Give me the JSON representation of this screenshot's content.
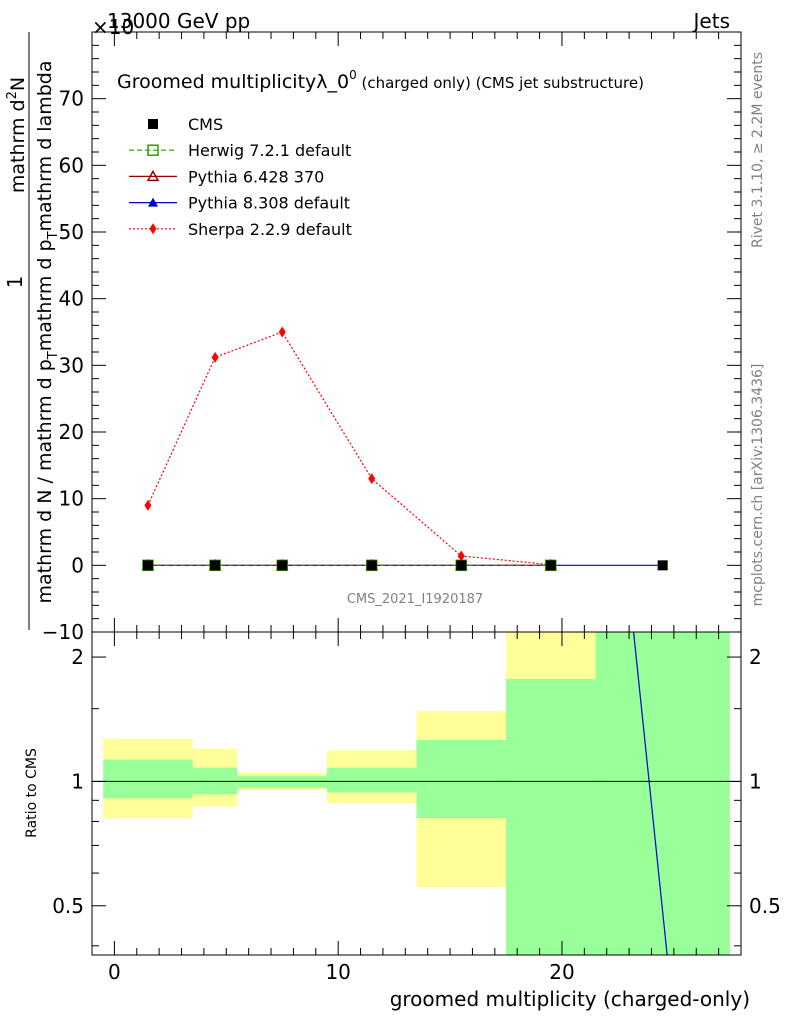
{
  "header": {
    "left": "13000 GeV pp",
    "right": "Jets",
    "exponent": "×10"
  },
  "side": {
    "rivet": "Rivet 3.1.10, ≥ 2.2M events",
    "source": "mcplots.cern.ch [arXiv:1306.3436]"
  },
  "chart_data": [
    {
      "type": "line",
      "title": {
        "main": "Groomed multiplicityλ_0",
        "sup": "0",
        "suffix": " (charged only) (CMS jet substructure)"
      },
      "watermark": "CMS_2021_I1920187",
      "ylabel": {
        "numerator_one": "1",
        "numerator": "mathrm d",
        "numerator_sup": "2",
        "numerator_end": "N",
        "denominator": "mathrm d N / mathrm d p",
        "denominator_sub": "T",
        "denominator_tail": "mathrm d p",
        "denominator_tail_sub": "T",
        "denominator_end": "mathrm d lambda"
      },
      "xlim": [
        -1,
        28
      ],
      "ylim": [
        -10,
        80
      ],
      "yticks": [
        -10,
        0,
        10,
        20,
        30,
        40,
        50,
        60,
        70
      ],
      "legend_position": "top-left",
      "series": [
        {
          "name": "CMS",
          "color": "#000000",
          "marker": "square-filled",
          "line": "none",
          "x": [
            1.5,
            4.5,
            7.5,
            11.5,
            15.5,
            19.5,
            24.5
          ],
          "y": [
            0,
            0,
            0,
            0,
            0,
            0,
            0
          ]
        },
        {
          "name": "Herwig 7.2.1 default",
          "color": "#339900",
          "marker": "square-open",
          "line": "dashed",
          "x": [
            1.5,
            4.5,
            7.5,
            11.5,
            15.5,
            19.5
          ],
          "y": [
            0,
            0,
            0,
            0,
            0,
            0
          ]
        },
        {
          "name": "Pythia 6.428 370",
          "color": "#990000",
          "marker": "triangle-open",
          "line": "solid",
          "x": [
            1.5,
            4.5,
            7.5,
            11.5,
            15.5,
            19.5
          ],
          "y": [
            0,
            0,
            0,
            0,
            0,
            0
          ]
        },
        {
          "name": "Pythia 8.308 default",
          "color": "#0000cc",
          "marker": "triangle-filled",
          "line": "solid",
          "x": [
            1.5,
            4.5,
            7.5,
            11.5,
            15.5,
            19.5,
            24.5
          ],
          "y": [
            0,
            0,
            0,
            0,
            0,
            0,
            0
          ]
        },
        {
          "name": "Sherpa 2.2.9 default",
          "color": "#ff0000",
          "marker": "diamond-filled",
          "line": "dotted",
          "x": [
            1.5,
            4.5,
            7.5,
            11.5,
            15.5,
            19.5
          ],
          "y": [
            9,
            31.2,
            35,
            13,
            1.4,
            0.1
          ]
        }
      ]
    },
    {
      "type": "area",
      "ylabel": "Ratio to CMS",
      "xlabel": "groomed multiplicity (charged-only)",
      "xlim": [
        -1,
        28
      ],
      "ylim": [
        0.38,
        2.3
      ],
      "log_y": true,
      "xticks": [
        0,
        10,
        20
      ],
      "yticks": [
        0.5,
        1,
        2
      ],
      "reference": 1,
      "bands": [
        {
          "x0": -0.5,
          "x1": 3.5,
          "yellow": [
            0.815,
            1.27
          ],
          "green": [
            0.91,
            1.13
          ]
        },
        {
          "x0": 3.5,
          "x1": 5.5,
          "yellow": [
            0.87,
            1.2
          ],
          "green": [
            0.93,
            1.08
          ]
        },
        {
          "x0": 5.5,
          "x1": 9.5,
          "yellow": [
            0.955,
            1.05
          ],
          "green": [
            0.965,
            1.03
          ]
        },
        {
          "x0": 9.5,
          "x1": 13.5,
          "yellow": [
            0.885,
            1.19
          ],
          "green": [
            0.94,
            1.08
          ]
        },
        {
          "x0": 13.5,
          "x1": 17.5,
          "yellow": [
            0.555,
            1.48
          ],
          "green": [
            0.815,
            1.26
          ]
        },
        {
          "x0": 17.5,
          "x1": 21.5,
          "yellow": [
            0.38,
            2.3
          ],
          "green": [
            0.38,
            1.77
          ]
        },
        {
          "x0": 21.5,
          "x1": 27.5,
          "yellow": [
            0.38,
            2.3
          ],
          "green": [
            0.38,
            2.3
          ]
        }
      ],
      "series": [
        {
          "name": "Pythia 8.308 default",
          "color": "#0000cc",
          "x": [
            23.2,
            24.7
          ],
          "y": [
            2.3,
            0.38
          ]
        }
      ]
    }
  ]
}
